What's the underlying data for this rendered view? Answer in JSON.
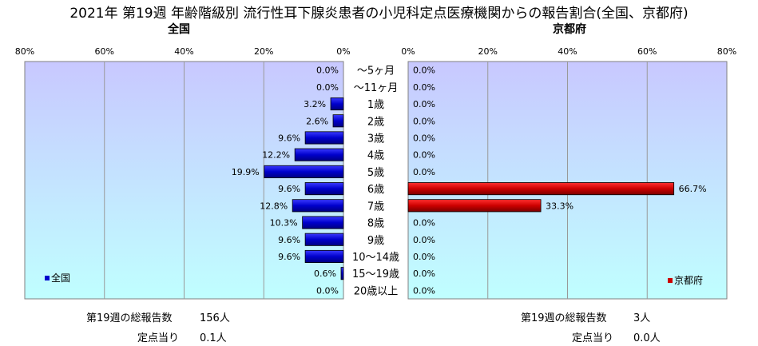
{
  "title": "2021年 第19週 年齢階級別 流行性耳下腺炎患者の小児科定点医療機関からの報告割合(全国、京都府)",
  "chart_data": {
    "type": "bar",
    "orientation": "horizontal-butterfly",
    "categories": [
      "～5ヶ月",
      "～11ヶ月",
      "1歳",
      "2歳",
      "3歳",
      "4歳",
      "5歳",
      "6歳",
      "7歳",
      "8歳",
      "9歳",
      "10～14歳",
      "15～19歳",
      "20歳以上"
    ],
    "xlim": [
      0,
      80
    ],
    "x_ticks": [
      "0%",
      "20%",
      "40%",
      "60%",
      "80%"
    ],
    "grid": true,
    "series": [
      {
        "name": "全国",
        "side": "left",
        "color": "#0000cc",
        "values": [
          0.0,
          0.0,
          3.2,
          2.6,
          9.6,
          12.2,
          19.9,
          9.6,
          12.8,
          10.3,
          9.6,
          9.6,
          0.6,
          0.0
        ],
        "labels": [
          "0.0%",
          "0.0%",
          "3.2%",
          "2.6%",
          "9.6%",
          "12.2%",
          "19.9%",
          "9.6%",
          "12.8%",
          "10.3%",
          "9.6%",
          "9.6%",
          "0.6%",
          "0.0%"
        ]
      },
      {
        "name": "京都府",
        "side": "right",
        "color": "#cc0000",
        "values": [
          0.0,
          0.0,
          0.0,
          0.0,
          0.0,
          0.0,
          0.0,
          66.7,
          33.3,
          0.0,
          0.0,
          0.0,
          0.0,
          0.0
        ],
        "labels": [
          "0.0%",
          "0.0%",
          "0.0%",
          "0.0%",
          "0.0%",
          "0.0%",
          "0.0%",
          "66.7%",
          "33.3%",
          "0.0%",
          "0.0%",
          "0.0%",
          "0.0%",
          "0.0%"
        ]
      }
    ]
  },
  "left_panel": {
    "title": "全国",
    "legend": "全国",
    "total_label": "第19週の総報告数",
    "total_value": "156人",
    "per_label": "定点当り",
    "per_value": "0.1人"
  },
  "right_panel": {
    "title": "京都府",
    "legend": "京都府",
    "total_label": "第19週の総報告数",
    "total_value": "3人",
    "per_label": "定点当り",
    "per_value": "0.0人"
  },
  "colors": {
    "plot_top": "#c8c8ff",
    "plot_bottom": "#c0ffff",
    "blue": "#0000cc",
    "red": "#cc0000"
  }
}
